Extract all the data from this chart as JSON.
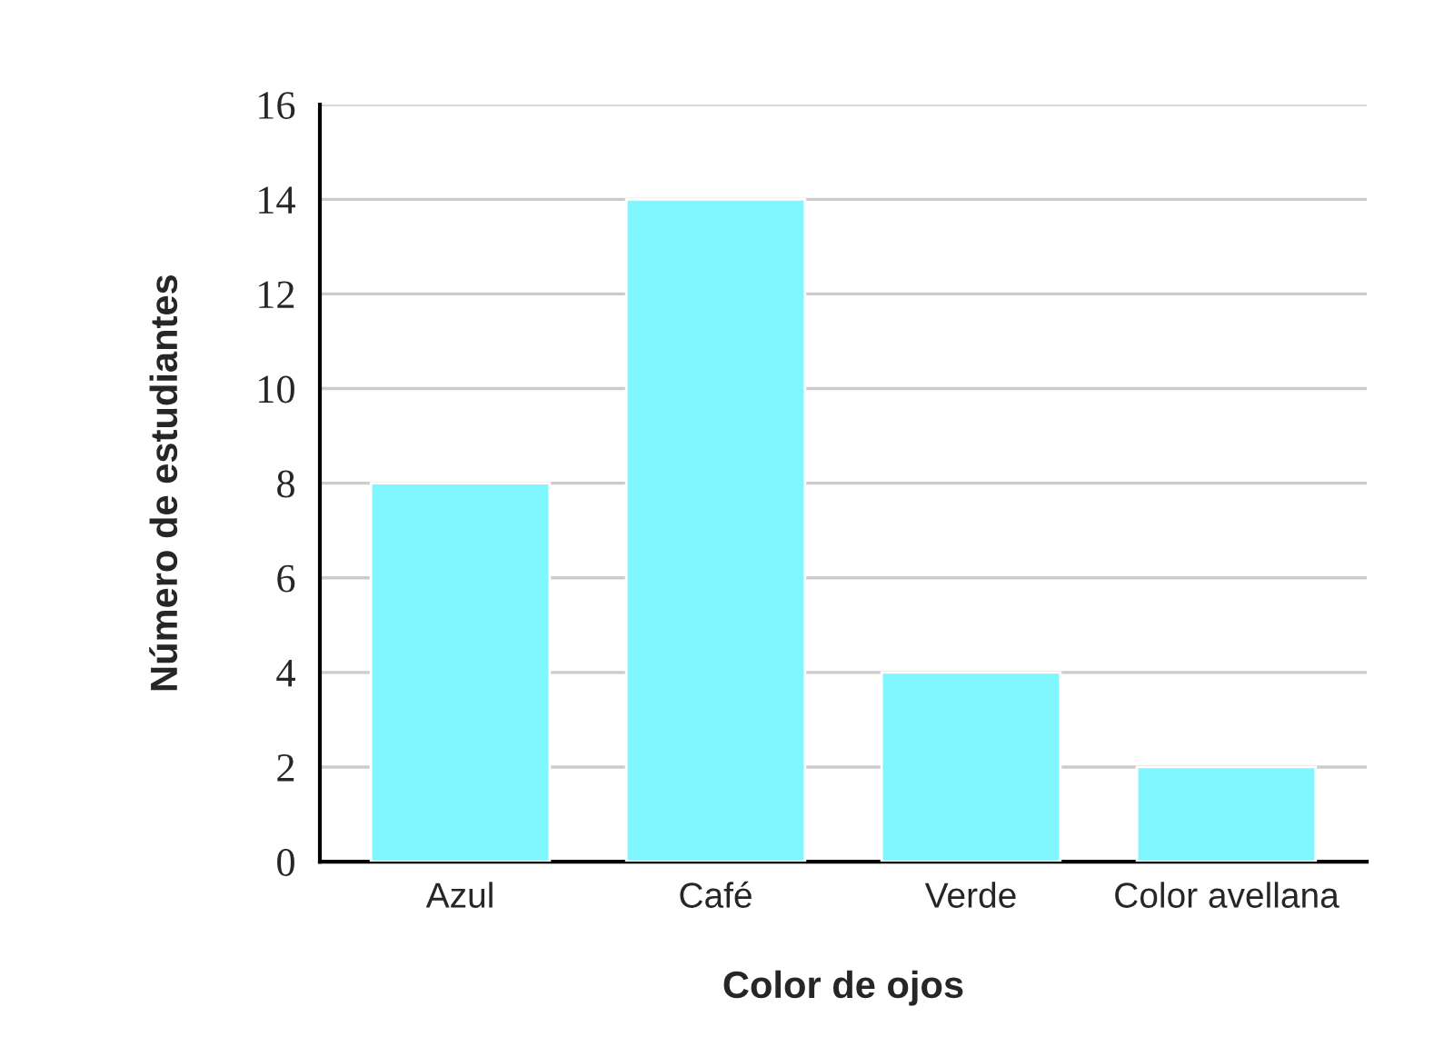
{
  "chart_data": {
    "type": "bar",
    "xlabel": "Color de ojos",
    "ylabel": "Número de estudiantes",
    "categories": [
      "Azul",
      "Café",
      "Verde",
      "Color avellana"
    ],
    "values": [
      8,
      14,
      4,
      2
    ],
    "color": "#80f7ff",
    "ylim": [
      0,
      16
    ],
    "yticks": [
      0,
      2,
      4,
      6,
      8,
      10,
      12,
      14,
      16
    ],
    "grid": "y"
  }
}
